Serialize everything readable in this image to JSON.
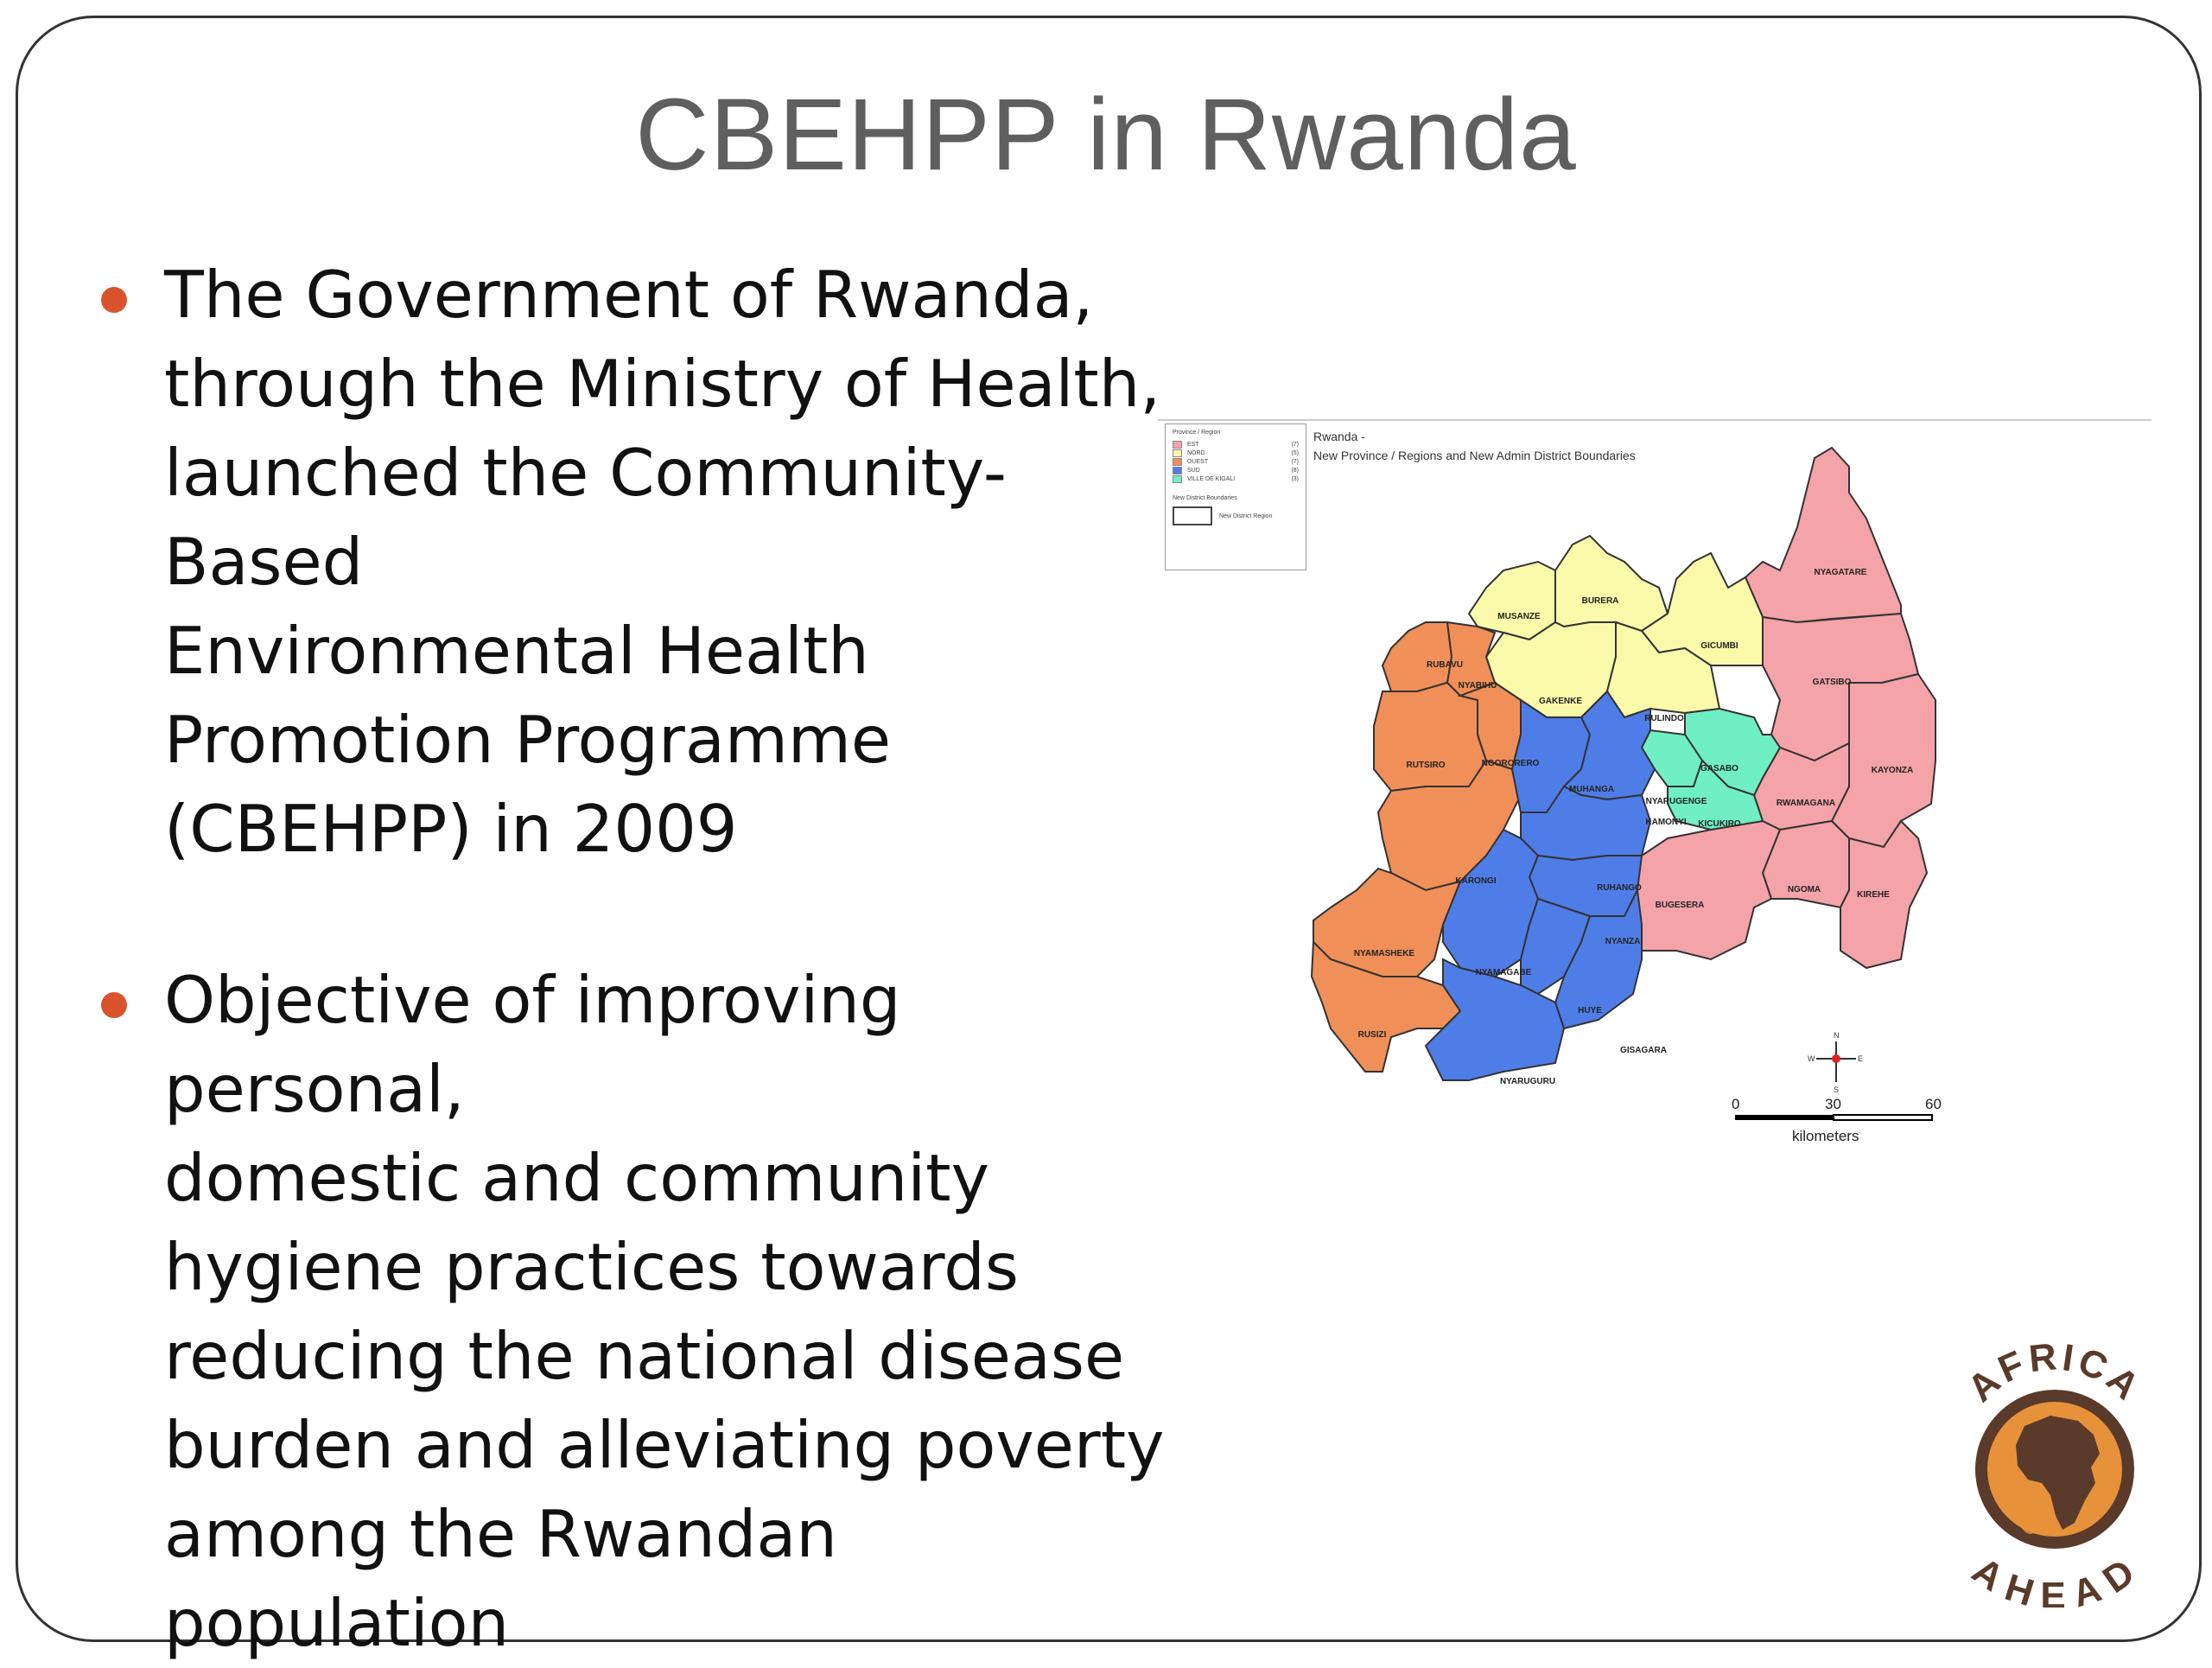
{
  "slide": {
    "title": "CBEHPP in Rwanda",
    "bullets": [
      {
        "text": "The Government of Rwanda,\nthrough the Ministry of Health,\nlaunched the Community-Based\nEnvironmental Health\nPromotion Programme\n(CBEHPP) in 2009"
      },
      {
        "text": "Objective of improving personal,\ndomestic and community\nhygiene practices towards\nreducing the national disease\nburden and alleviating poverty\namong the Rwandan population"
      }
    ],
    "bullet_color": "#d9542c"
  },
  "map": {
    "title_line1": "Rwanda -",
    "title_line2": "New Province / Regions and New Admin District Boundaries",
    "legend": {
      "heading": "Province / Region",
      "items": [
        {
          "name": "EST",
          "count": "(7)",
          "color": "#f4a3a8"
        },
        {
          "name": "NORD",
          "count": "(5)",
          "color": "#fafaaa"
        },
        {
          "name": "OUEST",
          "count": "(7)",
          "color": "#f08f58"
        },
        {
          "name": "SUD",
          "count": "(8)",
          "color": "#4f7de8"
        },
        {
          "name": "VILLE DE KIGALI",
          "count": "(3)",
          "color": "#70efc4"
        }
      ],
      "boundaries_heading": "New District Boundaries",
      "boundary_item": "New District Region"
    },
    "districts": {
      "nyagatare": "NYAGATARE",
      "gatsibo": "GATSIBO",
      "kayonza": "KAYONZA",
      "rwamagana": "RWAMAGANA",
      "ngoma": "NGOMA",
      "kirehe": "KIREHE",
      "bugesera": "BUGESERA",
      "musanze": "MUSANZE",
      "burera": "BURERA",
      "gicumbi": "GICUMBI",
      "gakenke": "GAKENKE",
      "rulindo": "RULINDO",
      "gasabo": "GASABO",
      "nyarugenge": "NYARUGENGE",
      "kicukiro": "KICUKIRO",
      "rubavu": "RUBAVU",
      "nyabihu": "NYABIHU",
      "rutsiro": "RUTSIRO",
      "ngororero": "NGORORERO",
      "karongi": "KARONGI",
      "nyamasheke": "NYAMASHEKE",
      "rusizi": "RUSIZI",
      "muhanga": "MUHANGA",
      "kamonyi": "KAMONYI",
      "ruhango": "RUHANGO",
      "nyanza": "NYANZA",
      "nyamagabe": "NYAMAGABE",
      "huye": "HUYE",
      "gisagara": "GISAGARA",
      "nyaruguru": "NYARUGURU"
    },
    "scale": {
      "tick0": "0",
      "tick1": "30",
      "tick2": "60",
      "unit": "kilometers"
    },
    "compass": {
      "n": "N",
      "s": "S",
      "e": "E",
      "w": "W"
    }
  },
  "logo": {
    "top_text": "AFRICA",
    "bottom_text": "AHEAD",
    "ring_color": "#5a3a2a",
    "accent_color": "#e7923a"
  }
}
